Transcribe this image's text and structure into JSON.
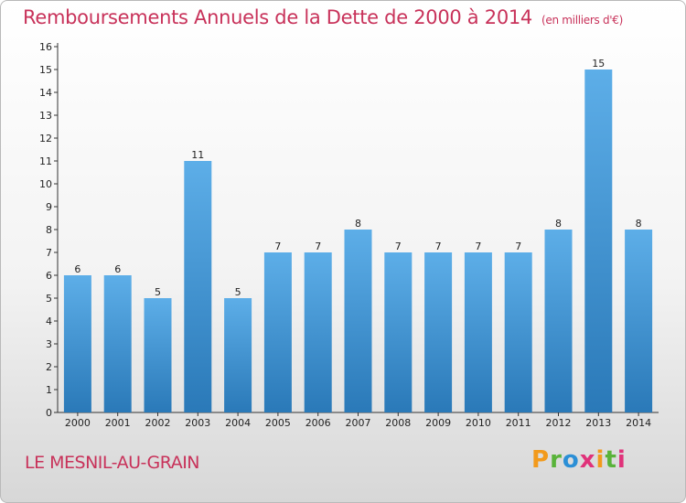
{
  "title": "Remboursements Annuels de la Dette de 2000 à 2014",
  "subtitle": "(en milliers d'€)",
  "location": "LE MESNIL-AU-GRAIN",
  "brand": {
    "letters": [
      "P",
      "r",
      "o",
      "x",
      "i",
      "t",
      "i"
    ],
    "colors": [
      "#f29a1c",
      "#59b33a",
      "#2b8fd6",
      "#e0327a"
    ]
  },
  "colors": {
    "bar_top": "#5daee8",
    "bar_bottom": "#2a79b8",
    "title": "#c8325a"
  },
  "chart_data": {
    "type": "bar",
    "title": "Remboursements Annuels de la Dette de 2000 à 2014",
    "xlabel": "",
    "ylabel": "",
    "categories": [
      "2000",
      "2001",
      "2002",
      "2003",
      "2004",
      "2005",
      "2006",
      "2007",
      "2008",
      "2009",
      "2010",
      "2011",
      "2012",
      "2013",
      "2014"
    ],
    "values": [
      6,
      6,
      5,
      11,
      5,
      7,
      7,
      8,
      7,
      7,
      7,
      7,
      8,
      15,
      8
    ],
    "ylim": [
      0,
      16
    ],
    "yticks": [
      0,
      1,
      2,
      3,
      4,
      5,
      6,
      7,
      8,
      9,
      10,
      11,
      12,
      13,
      14,
      15,
      16
    ],
    "grid": false
  }
}
